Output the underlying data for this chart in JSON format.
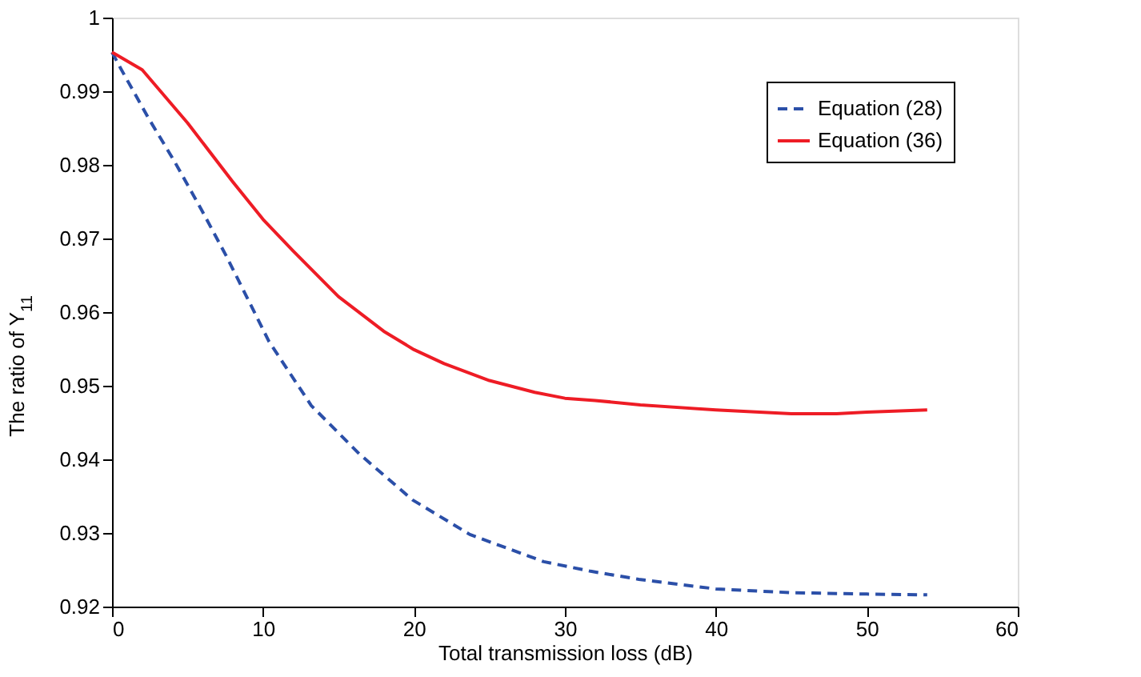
{
  "chart_data": {
    "type": "line",
    "xlabel": "Total transmission loss (dB)",
    "ylabel": "The ratio of Y$_{11}$",
    "xlim": [
      0,
      60
    ],
    "xticks": [
      0,
      10,
      20,
      30,
      40,
      50,
      60
    ],
    "ylim": [
      0.92,
      1
    ],
    "yticks": [
      0.92,
      0.93,
      0.94,
      0.95,
      0.96,
      0.97,
      0.98,
      0.99,
      1
    ],
    "legend": "top right",
    "grid": false,
    "series": [
      {
        "name": "Equation (28)",
        "color": "#2b4fa8",
        "line_style": "dashed",
        "x": [
          0,
          0.6,
          2.4,
          4.1,
          5.9,
          7.6,
          10.4,
          13.2,
          16.4,
          19.9,
          23.7,
          28.6,
          31.7,
          34.9,
          40,
          44.9,
          50,
          54
        ],
        "values": [
          0.9953,
          0.993,
          0.9864,
          0.9806,
          0.974,
          0.9675,
          0.956,
          0.9473,
          0.9407,
          0.9345,
          0.9298,
          0.9261,
          0.9248,
          0.9237,
          0.9224,
          0.9219,
          0.9217,
          0.9216
        ]
      },
      {
        "name": "Equation (36)",
        "color": "#ee1c25",
        "line_style": "solid",
        "x": [
          0,
          2,
          5,
          8,
          10,
          12,
          15,
          18,
          20,
          22,
          25,
          28,
          30,
          32,
          35,
          40,
          45,
          48,
          50,
          54
        ],
        "values": [
          0.9953,
          0.9929,
          0.9857,
          0.9777,
          0.9726,
          0.9683,
          0.9621,
          0.9574,
          0.9549,
          0.953,
          0.9507,
          0.9491,
          0.9483,
          0.948,
          0.9474,
          0.9467,
          0.9462,
          0.9462,
          0.9464,
          0.9467
        ]
      }
    ]
  }
}
